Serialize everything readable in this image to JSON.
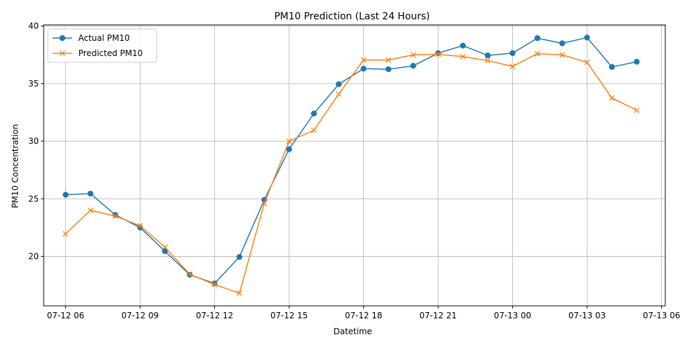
{
  "chart_data": {
    "type": "line",
    "title": "PM10 Prediction (Last 24 Hours)",
    "xlabel": "Datetime",
    "ylabel": "PM10 Concentration",
    "x": [
      "2023-07-12 06:00",
      "2023-07-12 07:00",
      "2023-07-12 08:00",
      "2023-07-12 09:00",
      "2023-07-12 10:00",
      "2023-07-12 11:00",
      "2023-07-12 12:00",
      "2023-07-12 13:00",
      "2023-07-12 14:00",
      "2023-07-12 15:00",
      "2023-07-12 16:00",
      "2023-07-12 17:00",
      "2023-07-12 18:00",
      "2023-07-12 19:00",
      "2023-07-12 20:00",
      "2023-07-12 21:00",
      "2023-07-12 22:00",
      "2023-07-12 23:00",
      "2023-07-13 00:00",
      "2023-07-13 01:00",
      "2023-07-13 02:00",
      "2023-07-13 03:00",
      "2023-07-13 04:00",
      "2023-07-13 05:00"
    ],
    "series": [
      {
        "name": "Actual PM10",
        "color": "#1f77b4",
        "marker": "circle",
        "values": [
          25.35,
          25.45,
          23.6,
          22.5,
          20.45,
          18.4,
          17.65,
          19.95,
          24.9,
          29.3,
          32.4,
          34.95,
          36.3,
          36.25,
          36.55,
          37.65,
          38.3,
          37.45,
          37.65,
          38.95,
          38.5,
          39.0,
          36.45,
          36.9
        ]
      },
      {
        "name": "Predicted PM10",
        "color": "#ff7f0e",
        "marker": "x",
        "values": [
          21.95,
          24.0,
          23.5,
          22.65,
          20.8,
          18.45,
          17.55,
          16.8,
          24.6,
          30.0,
          30.95,
          34.1,
          37.05,
          37.05,
          37.5,
          37.55,
          37.35,
          37.0,
          36.5,
          37.6,
          37.5,
          36.85,
          33.75,
          32.7
        ]
      }
    ],
    "x_ticks": [
      {
        "x": "2023-07-12 06:00",
        "label": "07-12 06"
      },
      {
        "x": "2023-07-12 09:00",
        "label": "07-12 09"
      },
      {
        "x": "2023-07-12 12:00",
        "label": "07-12 12"
      },
      {
        "x": "2023-07-12 15:00",
        "label": "07-12 15"
      },
      {
        "x": "2023-07-12 18:00",
        "label": "07-12 18"
      },
      {
        "x": "2023-07-12 21:00",
        "label": "07-12 21"
      },
      {
        "x": "2023-07-13 00:00",
        "label": "07-13 00"
      },
      {
        "x": "2023-07-13 03:00",
        "label": "07-13 03"
      },
      {
        "x": "2023-07-13 06:00",
        "label": "07-13 06"
      }
    ],
    "y_ticks": [
      20,
      25,
      30,
      35,
      40
    ],
    "xlim": [
      "2023-07-12 05:07",
      "2023-07-13 06:09"
    ],
    "ylim": [
      15.7,
      40.1
    ],
    "grid": true,
    "legend_position": "top-left"
  }
}
